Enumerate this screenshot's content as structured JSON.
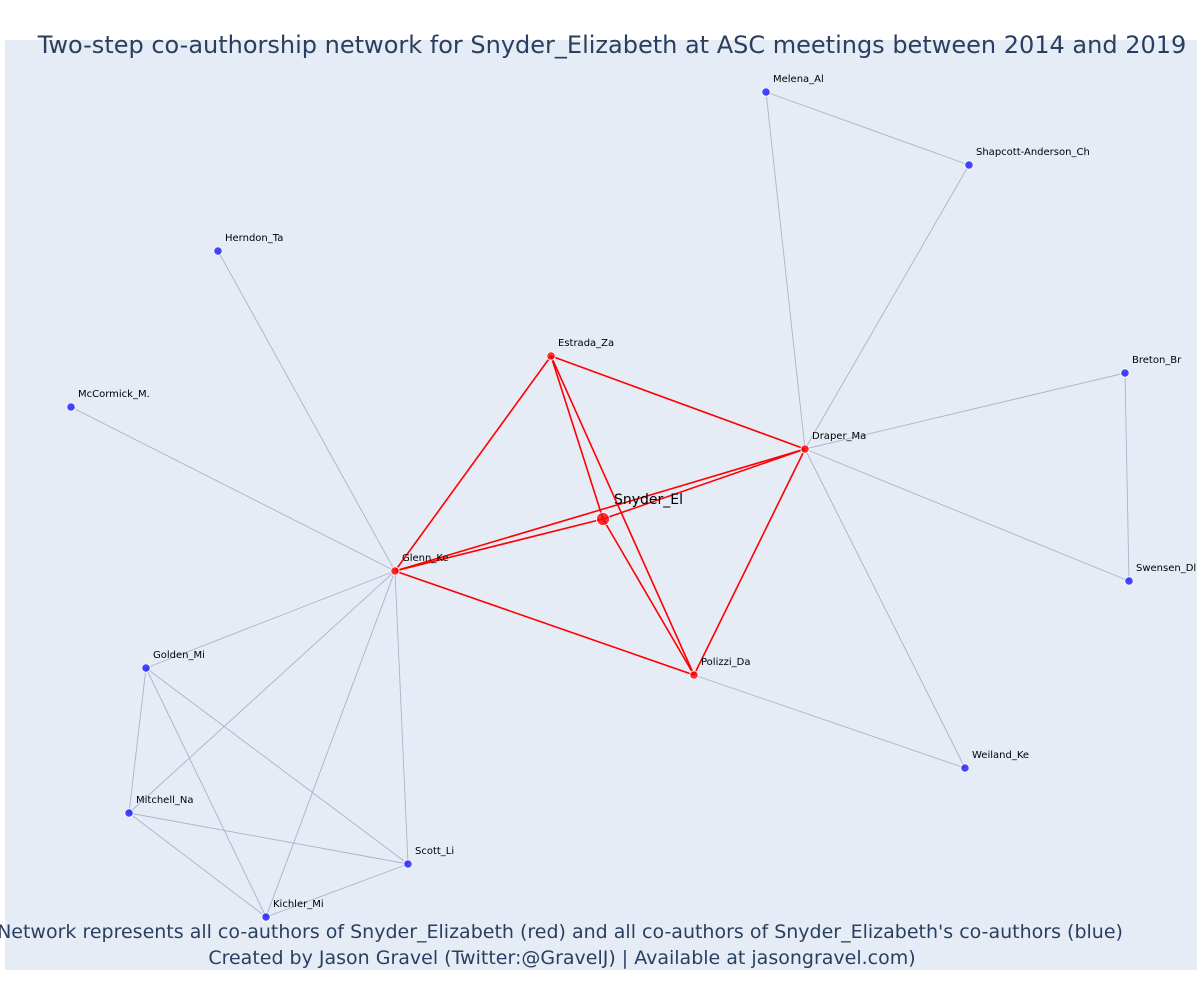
{
  "title": "Two-step co-authorship network for Snyder_Elizabeth at ASC meetings between 2014 and 2019",
  "footer": {
    "line1": "Network represents all co-authors of Snyder_Elizabeth (red) and all co-authors of Snyder_Elizabeth's co-authors (blue)",
    "line2": "Created by Jason Gravel (Twitter:@GravelJ) | Available at jasongravel.com)"
  },
  "colors": {
    "background": "#e5ecf6",
    "first_degree": "#ff0000",
    "second_degree": "#0000ff",
    "first_degree_edge": "#ff0000",
    "second_degree_edge": "#b0b0c8",
    "text": "#2a3f5f"
  },
  "chart_data": {
    "type": "network",
    "center": "Snyder_El",
    "nodes": [
      {
        "id": "Snyder_El",
        "group": "center"
      },
      {
        "id": "Estrada_Za",
        "group": "first"
      },
      {
        "id": "Draper_Ma",
        "group": "first"
      },
      {
        "id": "Glenn_Ke",
        "group": "first"
      },
      {
        "id": "Polizzi_Da",
        "group": "first"
      },
      {
        "id": "Melena_Al",
        "group": "second"
      },
      {
        "id": "Shapcott-Anderson_Ch",
        "group": "second"
      },
      {
        "id": "Herndon_Ta",
        "group": "second"
      },
      {
        "id": "McCormick_M.",
        "group": "second"
      },
      {
        "id": "Breton_Br",
        "group": "second"
      },
      {
        "id": "Swensen_Dl",
        "group": "second"
      },
      {
        "id": "Golden_Mi",
        "group": "second"
      },
      {
        "id": "Mitchell_Na",
        "group": "second"
      },
      {
        "id": "Scott_Li",
        "group": "second"
      },
      {
        "id": "Kichler_Mi",
        "group": "second"
      },
      {
        "id": "Weiland_Ke",
        "group": "second"
      }
    ],
    "edges": [
      {
        "source": "Snyder_El",
        "target": "Estrada_Za",
        "group": "first"
      },
      {
        "source": "Snyder_El",
        "target": "Draper_Ma",
        "group": "first"
      },
      {
        "source": "Snyder_El",
        "target": "Glenn_Ke",
        "group": "first"
      },
      {
        "source": "Snyder_El",
        "target": "Polizzi_Da",
        "group": "first"
      },
      {
        "source": "Estrada_Za",
        "target": "Draper_Ma",
        "group": "first"
      },
      {
        "source": "Estrada_Za",
        "target": "Glenn_Ke",
        "group": "first"
      },
      {
        "source": "Estrada_Za",
        "target": "Polizzi_Da",
        "group": "first"
      },
      {
        "source": "Draper_Ma",
        "target": "Glenn_Ke",
        "group": "first"
      },
      {
        "source": "Draper_Ma",
        "target": "Polizzi_Da",
        "group": "first"
      },
      {
        "source": "Glenn_Ke",
        "target": "Polizzi_Da",
        "group": "first"
      },
      {
        "source": "Draper_Ma",
        "target": "Melena_Al",
        "group": "second"
      },
      {
        "source": "Draper_Ma",
        "target": "Shapcott-Anderson_Ch",
        "group": "second"
      },
      {
        "source": "Melena_Al",
        "target": "Shapcott-Anderson_Ch",
        "group": "second"
      },
      {
        "source": "Draper_Ma",
        "target": "Breton_Br",
        "group": "second"
      },
      {
        "source": "Draper_Ma",
        "target": "Swensen_Dl",
        "group": "second"
      },
      {
        "source": "Breton_Br",
        "target": "Swensen_Dl",
        "group": "second"
      },
      {
        "source": "Draper_Ma",
        "target": "Weiland_Ke",
        "group": "second"
      },
      {
        "source": "Polizzi_Da",
        "target": "Weiland_Ke",
        "group": "second"
      },
      {
        "source": "Glenn_Ke",
        "target": "Herndon_Ta",
        "group": "second"
      },
      {
        "source": "Glenn_Ke",
        "target": "McCormick_M.",
        "group": "second"
      },
      {
        "source": "Glenn_Ke",
        "target": "Golden_Mi",
        "group": "second"
      },
      {
        "source": "Glenn_Ke",
        "target": "Mitchell_Na",
        "group": "second"
      },
      {
        "source": "Glenn_Ke",
        "target": "Scott_Li",
        "group": "second"
      },
      {
        "source": "Glenn_Ke",
        "target": "Kichler_Mi",
        "group": "second"
      },
      {
        "source": "Golden_Mi",
        "target": "Mitchell_Na",
        "group": "second"
      },
      {
        "source": "Golden_Mi",
        "target": "Scott_Li",
        "group": "second"
      },
      {
        "source": "Golden_Mi",
        "target": "Kichler_Mi",
        "group": "second"
      },
      {
        "source": "Mitchell_Na",
        "target": "Scott_Li",
        "group": "second"
      },
      {
        "source": "Mitchell_Na",
        "target": "Kichler_Mi",
        "group": "second"
      },
      {
        "source": "Scott_Li",
        "target": "Kichler_Mi",
        "group": "second"
      }
    ]
  }
}
